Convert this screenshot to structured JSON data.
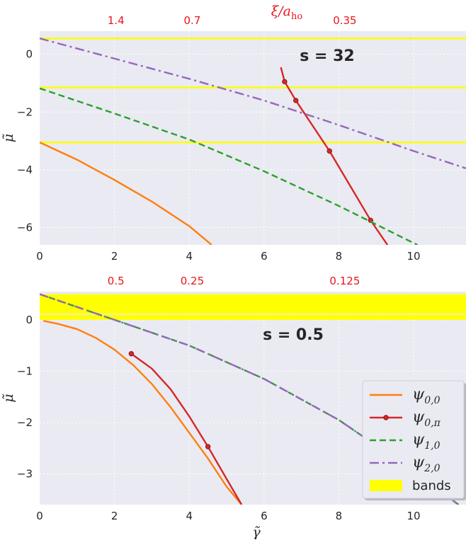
{
  "chart_data": [
    {
      "type": "line",
      "annotation": "s = 32",
      "xlabel": "",
      "ylabel": "μ̃",
      "xlim": [
        0,
        11.4
      ],
      "ylim": [
        -6.6,
        0.8
      ],
      "xticks": [
        0,
        2,
        4,
        6,
        8,
        10
      ],
      "yticks": [
        0,
        -2,
        -4,
        -6
      ],
      "top_axis": {
        "label": "ξ/a_ho",
        "ticks": [
          {
            "x": 2.04,
            "label": "1.4"
          },
          {
            "x": 4.08,
            "label": "0.7"
          },
          {
            "x": 8.16,
            "label": "0.35"
          }
        ]
      },
      "bands": [
        0.55,
        -1.15,
        -3.05
      ],
      "grid": true,
      "series": [
        {
          "name": "ψ_{0,0}",
          "color": "#ff7f0e",
          "style": "solid",
          "x": [
            0,
            1,
            2,
            3,
            4,
            4.6
          ],
          "y": [
            -3.05,
            -3.65,
            -4.35,
            -5.1,
            -5.95,
            -6.6
          ]
        },
        {
          "name": "ψ_{0,π}",
          "color": "#d62728",
          "style": "solid-dot",
          "x": [
            6.45,
            6.5,
            6.55,
            6.85,
            7.75,
            8.85,
            9.3
          ],
          "y": [
            -0.45,
            -0.7,
            -0.95,
            -1.6,
            -3.35,
            -5.75,
            -6.6
          ],
          "markers": [
            [
              6.55,
              -0.95
            ],
            [
              6.85,
              -1.6
            ],
            [
              7.75,
              -3.35
            ],
            [
              8.85,
              -5.75
            ]
          ]
        },
        {
          "name": "ψ_{1,0}",
          "color": "#2ca02c",
          "style": "dashed",
          "x": [
            0,
            2,
            4,
            6,
            8,
            10.1
          ],
          "y": [
            -1.18,
            -2.05,
            -2.95,
            -4.05,
            -5.25,
            -6.6
          ]
        },
        {
          "name": "ψ_{2,0}",
          "color": "#9467bd",
          "style": "dashdot",
          "x": [
            0,
            2,
            4,
            6,
            8,
            10,
            11.4
          ],
          "y": [
            0.55,
            -0.15,
            -0.85,
            -1.6,
            -2.45,
            -3.35,
            -3.95
          ]
        }
      ]
    },
    {
      "type": "line",
      "annotation": "s = 0.5",
      "xlabel": "γ̃",
      "ylabel": "μ̃",
      "xlim": [
        0,
        11.4
      ],
      "ylim": [
        -3.6,
        0.55
      ],
      "xticks": [
        0,
        2,
        4,
        6,
        8,
        10
      ],
      "yticks": [
        0,
        -1,
        -2,
        -3
      ],
      "top_axis": {
        "ticks": [
          {
            "x": 2.04,
            "label": "0.5"
          },
          {
            "x": 4.08,
            "label": "0.25"
          },
          {
            "x": 8.16,
            "label": "0.125"
          }
        ]
      },
      "bands": [
        [
          0.12,
          0.5
        ],
        [
          0.0,
          0.1
        ]
      ],
      "grid": true,
      "series": [
        {
          "name": "ψ_{0,0}",
          "color": "#ff7f0e",
          "style": "solid",
          "x": [
            0.1,
            0.5,
            1.0,
            1.5,
            2.0,
            2.5,
            3.0,
            3.5,
            4.0,
            4.5,
            5.0,
            5.4
          ],
          "y": [
            -0.02,
            -0.08,
            -0.18,
            -0.35,
            -0.58,
            -0.88,
            -1.25,
            -1.7,
            -2.2,
            -2.7,
            -3.25,
            -3.6
          ]
        },
        {
          "name": "ψ_{0,π}",
          "color": "#d62728",
          "style": "solid-dot",
          "x": [
            2.45,
            3.0,
            3.5,
            4.0,
            4.5,
            5.0,
            5.4
          ],
          "y": [
            -0.66,
            -0.95,
            -1.35,
            -1.88,
            -2.47,
            -3.1,
            -3.6
          ],
          "markers": [
            [
              2.45,
              -0.66
            ],
            [
              4.5,
              -2.47
            ]
          ]
        },
        {
          "name": "ψ_{1,0}",
          "color": "#2ca02c",
          "style": "dashed",
          "x": [
            0,
            2,
            4,
            6,
            8,
            10,
            11.2
          ],
          "y": [
            0.5,
            0.0,
            -0.5,
            -1.15,
            -1.95,
            -2.95,
            -3.6
          ]
        },
        {
          "name": "ψ_{2,0}",
          "color": "#9467bd",
          "style": "dashdot",
          "x": [
            0,
            2,
            4,
            6,
            8,
            10,
            11.2
          ],
          "y": [
            0.5,
            0.0,
            -0.5,
            -1.15,
            -1.95,
            -2.95,
            -3.6
          ]
        }
      ],
      "legend": {
        "position": "lower-right",
        "entries": [
          {
            "label": "ψ_{0,0}",
            "color": "#ff7f0e",
            "style": "solid"
          },
          {
            "label": "ψ_{0,π}",
            "color": "#d62728",
            "style": "solid-dot"
          },
          {
            "label": "ψ_{1,0}",
            "color": "#2ca02c",
            "style": "dashed"
          },
          {
            "label": "ψ_{2,0}",
            "color": "#9467bd",
            "style": "dashdot"
          },
          {
            "label": "bands",
            "color": "#ffff00",
            "style": "patch"
          }
        ]
      }
    }
  ],
  "colors": {
    "axes_bg": "#eaeaf2",
    "grid": "#ffffff",
    "band": "#ffff00",
    "top_axis": "#e8161b"
  }
}
